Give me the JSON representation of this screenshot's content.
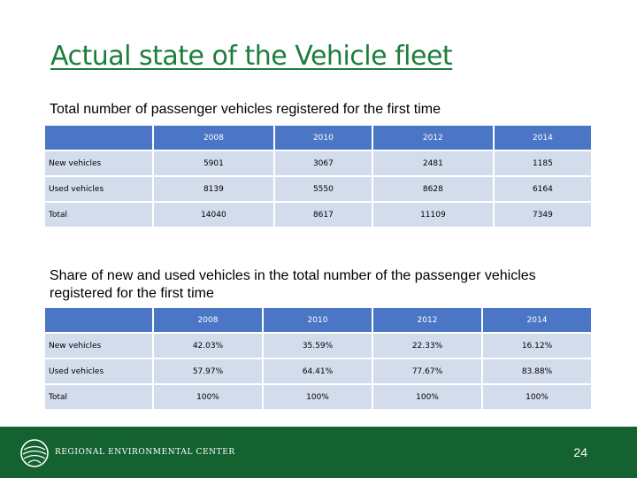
{
  "slide": {
    "title": "Actual state of the Vehicle fleet",
    "page_number": "24"
  },
  "section1": {
    "label": "Total number of passenger vehicles registered for the first time",
    "columns": [
      "",
      "2008",
      "2010",
      "2012",
      "2014"
    ],
    "rows": [
      {
        "label": "New vehicles",
        "values": [
          "5901",
          "3067",
          "2481",
          "1185"
        ]
      },
      {
        "label": "Used vehicles",
        "values": [
          "8139",
          "5550",
          "8628",
          "6164"
        ]
      },
      {
        "label": "Total",
        "values": [
          "14040",
          "8617",
          "11109",
          "7349"
        ]
      }
    ]
  },
  "section2": {
    "label": "Share of new and used vehicles in the total number of the passenger vehicles registered for the first time",
    "columns": [
      "",
      "2008",
      "2010",
      "2012",
      "2014"
    ],
    "rows": [
      {
        "label": "New vehicles",
        "values": [
          "42.03%",
          "35.59%",
          "22.33%",
          "16.12%"
        ]
      },
      {
        "label": "Used vehicles",
        "values": [
          "57.97%",
          "64.41%",
          "77.67%",
          "83.88%"
        ]
      },
      {
        "label": "Total",
        "values": [
          "100%",
          "100%",
          "100%",
          "100%"
        ]
      }
    ]
  },
  "footer": {
    "org_name": "REGIONAL ENVIRONMENTAL CENTER",
    "logo_icon": "rec-globe-logo-icon"
  },
  "colors": {
    "title": "#1e7d3c",
    "header_fill": "#4a76c5",
    "row_fill": "#d3dcec",
    "footer_bar": "#13622f"
  }
}
